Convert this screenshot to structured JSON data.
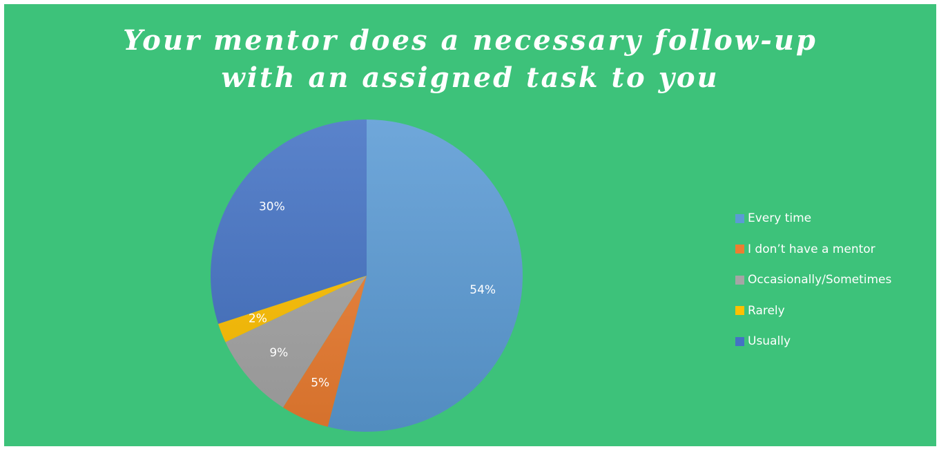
{
  "chart_data": {
    "type": "pie",
    "title": "Your mentor does a necessary follow-up with an assigned task to you",
    "title_lines": [
      "Your mentor does a necessary follow-up",
      "with an assigned task to you"
    ],
    "background_color": "#3dc27a",
    "start_angle_deg": 0,
    "direction": "clockwise",
    "legend_position": "right",
    "slices": [
      {
        "label": "Every time",
        "value": 54,
        "display": "54%",
        "color": "#5b9bd5"
      },
      {
        "label": "I don’t have a mentor",
        "value": 5,
        "display": "5%",
        "color": "#ed7d31"
      },
      {
        "label": "Occasionally/Sometimes",
        "value": 9,
        "display": "9%",
        "color": "#a5a5a5"
      },
      {
        "label": "Rarely",
        "value": 2,
        "display": "2%",
        "color": "#ffc000"
      },
      {
        "label": "Usually",
        "value": 30,
        "display": "30%",
        "color": "#4472c4"
      }
    ]
  }
}
